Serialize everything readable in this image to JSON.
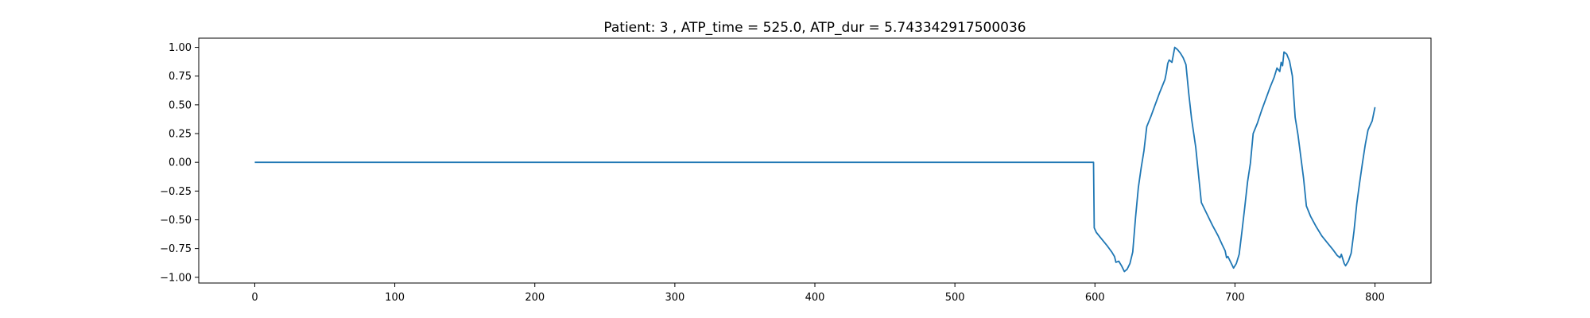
{
  "chart_data": {
    "type": "line",
    "title": "Patient: 3 , ATP_time = 525.0, ATP_dur = 5.743342917500036",
    "xlabel": "",
    "ylabel": "",
    "xlim": [
      -40,
      840
    ],
    "ylim": [
      -1.05,
      1.08
    ],
    "xticks": [
      0,
      100,
      200,
      300,
      400,
      500,
      600,
      700,
      800
    ],
    "xtick_labels": [
      "0",
      "100",
      "200",
      "300",
      "400",
      "500",
      "600",
      "700",
      "800"
    ],
    "yticks": [
      1.0,
      0.75,
      0.5,
      0.25,
      0.0,
      -0.25,
      -0.5,
      -0.75,
      -1.0
    ],
    "ytick_labels": [
      "1.00",
      "0.75",
      "0.50",
      "0.25",
      "0.00",
      "−0.25",
      "−0.50",
      "−0.75",
      "−1.00"
    ],
    "grid": false,
    "legend": false,
    "line_color": "#1f77b4",
    "series": [
      {
        "x": [
          0,
          100,
          200,
          300,
          400,
          500,
          599,
          599.5,
          601,
          605,
          609,
          612,
          614,
          615,
          617,
          619,
          621,
          623,
          625,
          627,
          629,
          631,
          633,
          635,
          637,
          640,
          643,
          646,
          648,
          650,
          651,
          652,
          653,
          655,
          657,
          659,
          661,
          663,
          665,
          667,
          669,
          672,
          676,
          680,
          684,
          688,
          691,
          693,
          694,
          695,
          697,
          699,
          701,
          703,
          705,
          707,
          709,
          711,
          713,
          716,
          719,
          722,
          725,
          728,
          730,
          732,
          733,
          734,
          735,
          737,
          739,
          741,
          743,
          745,
          747,
          749,
          751,
          754,
          758,
          762,
          766,
          770,
          773,
          775,
          776,
          777,
          778,
          779,
          781,
          783,
          785,
          787,
          789,
          791,
          793,
          795,
          798,
          800
        ],
        "y": [
          0,
          0,
          0,
          0,
          0,
          0,
          0,
          -0.57,
          -0.61,
          -0.67,
          -0.73,
          -0.78,
          -0.82,
          -0.87,
          -0.86,
          -0.9,
          -0.95,
          -0.93,
          -0.88,
          -0.78,
          -0.48,
          -0.22,
          -0.05,
          0.1,
          0.31,
          0.4,
          0.5,
          0.6,
          0.66,
          0.72,
          0.78,
          0.86,
          0.89,
          0.87,
          1.0,
          0.98,
          0.95,
          0.91,
          0.85,
          0.6,
          0.38,
          0.13,
          -0.35,
          -0.45,
          -0.55,
          -0.64,
          -0.72,
          -0.77,
          -0.83,
          -0.82,
          -0.87,
          -0.92,
          -0.88,
          -0.8,
          -0.6,
          -0.39,
          -0.17,
          -0.01,
          0.25,
          0.34,
          0.45,
          0.55,
          0.65,
          0.74,
          0.82,
          0.79,
          0.87,
          0.84,
          0.96,
          0.94,
          0.88,
          0.75,
          0.39,
          0.24,
          0.05,
          -0.14,
          -0.38,
          -0.47,
          -0.56,
          -0.64,
          -0.7,
          -0.76,
          -0.81,
          -0.83,
          -0.8,
          -0.84,
          -0.88,
          -0.9,
          -0.86,
          -0.79,
          -0.6,
          -0.36,
          -0.18,
          -0.01,
          0.15,
          0.28,
          0.36,
          0.48
        ]
      }
    ]
  }
}
